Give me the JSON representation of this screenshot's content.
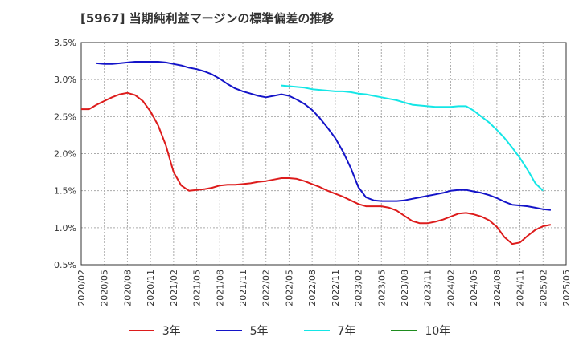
{
  "chart_data": {
    "type": "line",
    "title": "[5967]  当期純利益マージンの標準偏差の推移",
    "xlabel": "",
    "ylabel": "",
    "ylim": [
      0.005,
      0.035
    ],
    "y_ticks": [
      0.005,
      0.01,
      0.015,
      0.02,
      0.025,
      0.03,
      0.035
    ],
    "y_tick_labels": [
      "0.5%",
      "1.0%",
      "1.5%",
      "2.0%",
      "2.5%",
      "3.0%",
      "3.5%"
    ],
    "x_ticks": [
      "2020/02",
      "2020/05",
      "2020/08",
      "2020/11",
      "2021/02",
      "2021/05",
      "2021/08",
      "2021/11",
      "2022/02",
      "2022/05",
      "2022/08",
      "2022/11",
      "2023/02",
      "2023/05",
      "2023/08",
      "2023/11",
      "2024/02",
      "2024/05",
      "2024/08",
      "2024/11",
      "2025/02",
      "2025/05"
    ],
    "grid": true,
    "legend_position": "bottom",
    "series": [
      {
        "name": "3年",
        "color": "#dd1c1c",
        "points": [
          [
            "2020/02",
            0.026
          ],
          [
            "2020/03",
            0.026
          ],
          [
            "2020/04",
            0.0266
          ],
          [
            "2020/05",
            0.0271
          ],
          [
            "2020/06",
            0.0276
          ],
          [
            "2020/07",
            0.028
          ],
          [
            "2020/08",
            0.0282
          ],
          [
            "2020/09",
            0.0279
          ],
          [
            "2020/10",
            0.0271
          ],
          [
            "2020/11",
            0.0257
          ],
          [
            "2020/12",
            0.0238
          ],
          [
            "2021/01",
            0.0211
          ],
          [
            "2021/02",
            0.0175
          ],
          [
            "2021/03",
            0.0157
          ],
          [
            "2021/04",
            0.015
          ],
          [
            "2021/05",
            0.0151
          ],
          [
            "2021/06",
            0.0152
          ],
          [
            "2021/07",
            0.0154
          ],
          [
            "2021/08",
            0.0157
          ],
          [
            "2021/09",
            0.0158
          ],
          [
            "2021/10",
            0.0158
          ],
          [
            "2021/11",
            0.0159
          ],
          [
            "2021/12",
            0.016
          ],
          [
            "2022/01",
            0.0162
          ],
          [
            "2022/02",
            0.0163
          ],
          [
            "2022/03",
            0.0165
          ],
          [
            "2022/04",
            0.0167
          ],
          [
            "2022/05",
            0.0167
          ],
          [
            "2022/06",
            0.0166
          ],
          [
            "2022/07",
            0.0163
          ],
          [
            "2022/08",
            0.0159
          ],
          [
            "2022/09",
            0.0155
          ],
          [
            "2022/10",
            0.015
          ],
          [
            "2022/11",
            0.0146
          ],
          [
            "2022/12",
            0.0142
          ],
          [
            "2023/01",
            0.0137
          ],
          [
            "2023/02",
            0.0132
          ],
          [
            "2023/03",
            0.0129
          ],
          [
            "2023/04",
            0.0129
          ],
          [
            "2023/05",
            0.0129
          ],
          [
            "2023/06",
            0.0127
          ],
          [
            "2023/07",
            0.0123
          ],
          [
            "2023/08",
            0.0116
          ],
          [
            "2023/09",
            0.0109
          ],
          [
            "2023/10",
            0.0106
          ],
          [
            "2023/11",
            0.0106
          ],
          [
            "2023/12",
            0.0108
          ],
          [
            "2024/01",
            0.0111
          ],
          [
            "2024/02",
            0.0115
          ],
          [
            "2024/03",
            0.0119
          ],
          [
            "2024/04",
            0.012
          ],
          [
            "2024/05",
            0.0118
          ],
          [
            "2024/06",
            0.0115
          ],
          [
            "2024/07",
            0.011
          ],
          [
            "2024/08",
            0.0101
          ],
          [
            "2024/09",
            0.0087
          ],
          [
            "2024/10",
            0.0078
          ],
          [
            "2024/11",
            0.008
          ],
          [
            "2024/12",
            0.0089
          ],
          [
            "2025/01",
            0.0097
          ],
          [
            "2025/02",
            0.0102
          ],
          [
            "2025/03",
            0.0104
          ]
        ]
      },
      {
        "name": "5年",
        "color": "#1414c8",
        "points": [
          [
            "2020/04",
            0.0322
          ],
          [
            "2020/05",
            0.0321
          ],
          [
            "2020/06",
            0.0321
          ],
          [
            "2020/07",
            0.0322
          ],
          [
            "2020/08",
            0.0323
          ],
          [
            "2020/09",
            0.0324
          ],
          [
            "2020/10",
            0.0324
          ],
          [
            "2020/11",
            0.0324
          ],
          [
            "2020/12",
            0.0324
          ],
          [
            "2021/01",
            0.0323
          ],
          [
            "2021/02",
            0.0321
          ],
          [
            "2021/03",
            0.0319
          ],
          [
            "2021/04",
            0.0316
          ],
          [
            "2021/05",
            0.0314
          ],
          [
            "2021/06",
            0.0311
          ],
          [
            "2021/07",
            0.0307
          ],
          [
            "2021/08",
            0.0301
          ],
          [
            "2021/09",
            0.0294
          ],
          [
            "2021/10",
            0.0288
          ],
          [
            "2021/11",
            0.0284
          ],
          [
            "2021/12",
            0.0281
          ],
          [
            "2022/01",
            0.0278
          ],
          [
            "2022/02",
            0.0276
          ],
          [
            "2022/03",
            0.0278
          ],
          [
            "2022/04",
            0.028
          ],
          [
            "2022/05",
            0.0278
          ],
          [
            "2022/06",
            0.0273
          ],
          [
            "2022/07",
            0.0267
          ],
          [
            "2022/08",
            0.0259
          ],
          [
            "2022/09",
            0.0248
          ],
          [
            "2022/10",
            0.0235
          ],
          [
            "2022/11",
            0.0221
          ],
          [
            "2022/12",
            0.0203
          ],
          [
            "2023/01",
            0.0181
          ],
          [
            "2023/02",
            0.0155
          ],
          [
            "2023/03",
            0.0141
          ],
          [
            "2023/04",
            0.0137
          ],
          [
            "2023/05",
            0.0136
          ],
          [
            "2023/06",
            0.0136
          ],
          [
            "2023/07",
            0.0136
          ],
          [
            "2023/08",
            0.0137
          ],
          [
            "2023/09",
            0.0139
          ],
          [
            "2023/10",
            0.0141
          ],
          [
            "2023/11",
            0.0143
          ],
          [
            "2023/12",
            0.0145
          ],
          [
            "2024/01",
            0.0147
          ],
          [
            "2024/02",
            0.015
          ],
          [
            "2024/03",
            0.0151
          ],
          [
            "2024/04",
            0.0151
          ],
          [
            "2024/05",
            0.0149
          ],
          [
            "2024/06",
            0.0147
          ],
          [
            "2024/07",
            0.0144
          ],
          [
            "2024/08",
            0.014
          ],
          [
            "2024/09",
            0.0135
          ],
          [
            "2024/10",
            0.0131
          ],
          [
            "2024/11",
            0.013
          ],
          [
            "2024/12",
            0.0129
          ],
          [
            "2025/01",
            0.0127
          ],
          [
            "2025/02",
            0.0125
          ],
          [
            "2025/03",
            0.0124
          ]
        ]
      },
      {
        "name": "7年",
        "color": "#14e6e6",
        "points": [
          [
            "2022/04",
            0.0292
          ],
          [
            "2022/05",
            0.0291
          ],
          [
            "2022/06",
            0.029
          ],
          [
            "2022/07",
            0.0289
          ],
          [
            "2022/08",
            0.0287
          ],
          [
            "2022/09",
            0.0286
          ],
          [
            "2022/10",
            0.0285
          ],
          [
            "2022/11",
            0.0284
          ],
          [
            "2022/12",
            0.0284
          ],
          [
            "2023/01",
            0.0283
          ],
          [
            "2023/02",
            0.0281
          ],
          [
            "2023/03",
            0.028
          ],
          [
            "2023/04",
            0.0278
          ],
          [
            "2023/05",
            0.0276
          ],
          [
            "2023/06",
            0.0274
          ],
          [
            "2023/07",
            0.0272
          ],
          [
            "2023/08",
            0.0269
          ],
          [
            "2023/09",
            0.0266
          ],
          [
            "2023/10",
            0.0265
          ],
          [
            "2023/11",
            0.0264
          ],
          [
            "2023/12",
            0.0263
          ],
          [
            "2024/01",
            0.0263
          ],
          [
            "2024/02",
            0.0263
          ],
          [
            "2024/03",
            0.0264
          ],
          [
            "2024/04",
            0.0264
          ],
          [
            "2024/05",
            0.0258
          ],
          [
            "2024/06",
            0.025
          ],
          [
            "2024/07",
            0.0242
          ],
          [
            "2024/08",
            0.0232
          ],
          [
            "2024/09",
            0.0221
          ],
          [
            "2024/10",
            0.0208
          ],
          [
            "2024/11",
            0.0194
          ],
          [
            "2024/12",
            0.0178
          ],
          [
            "2025/01",
            0.016
          ],
          [
            "2025/02",
            0.015
          ]
        ]
      },
      {
        "name": "10年",
        "color": "#1e8c1e",
        "points": []
      }
    ]
  }
}
